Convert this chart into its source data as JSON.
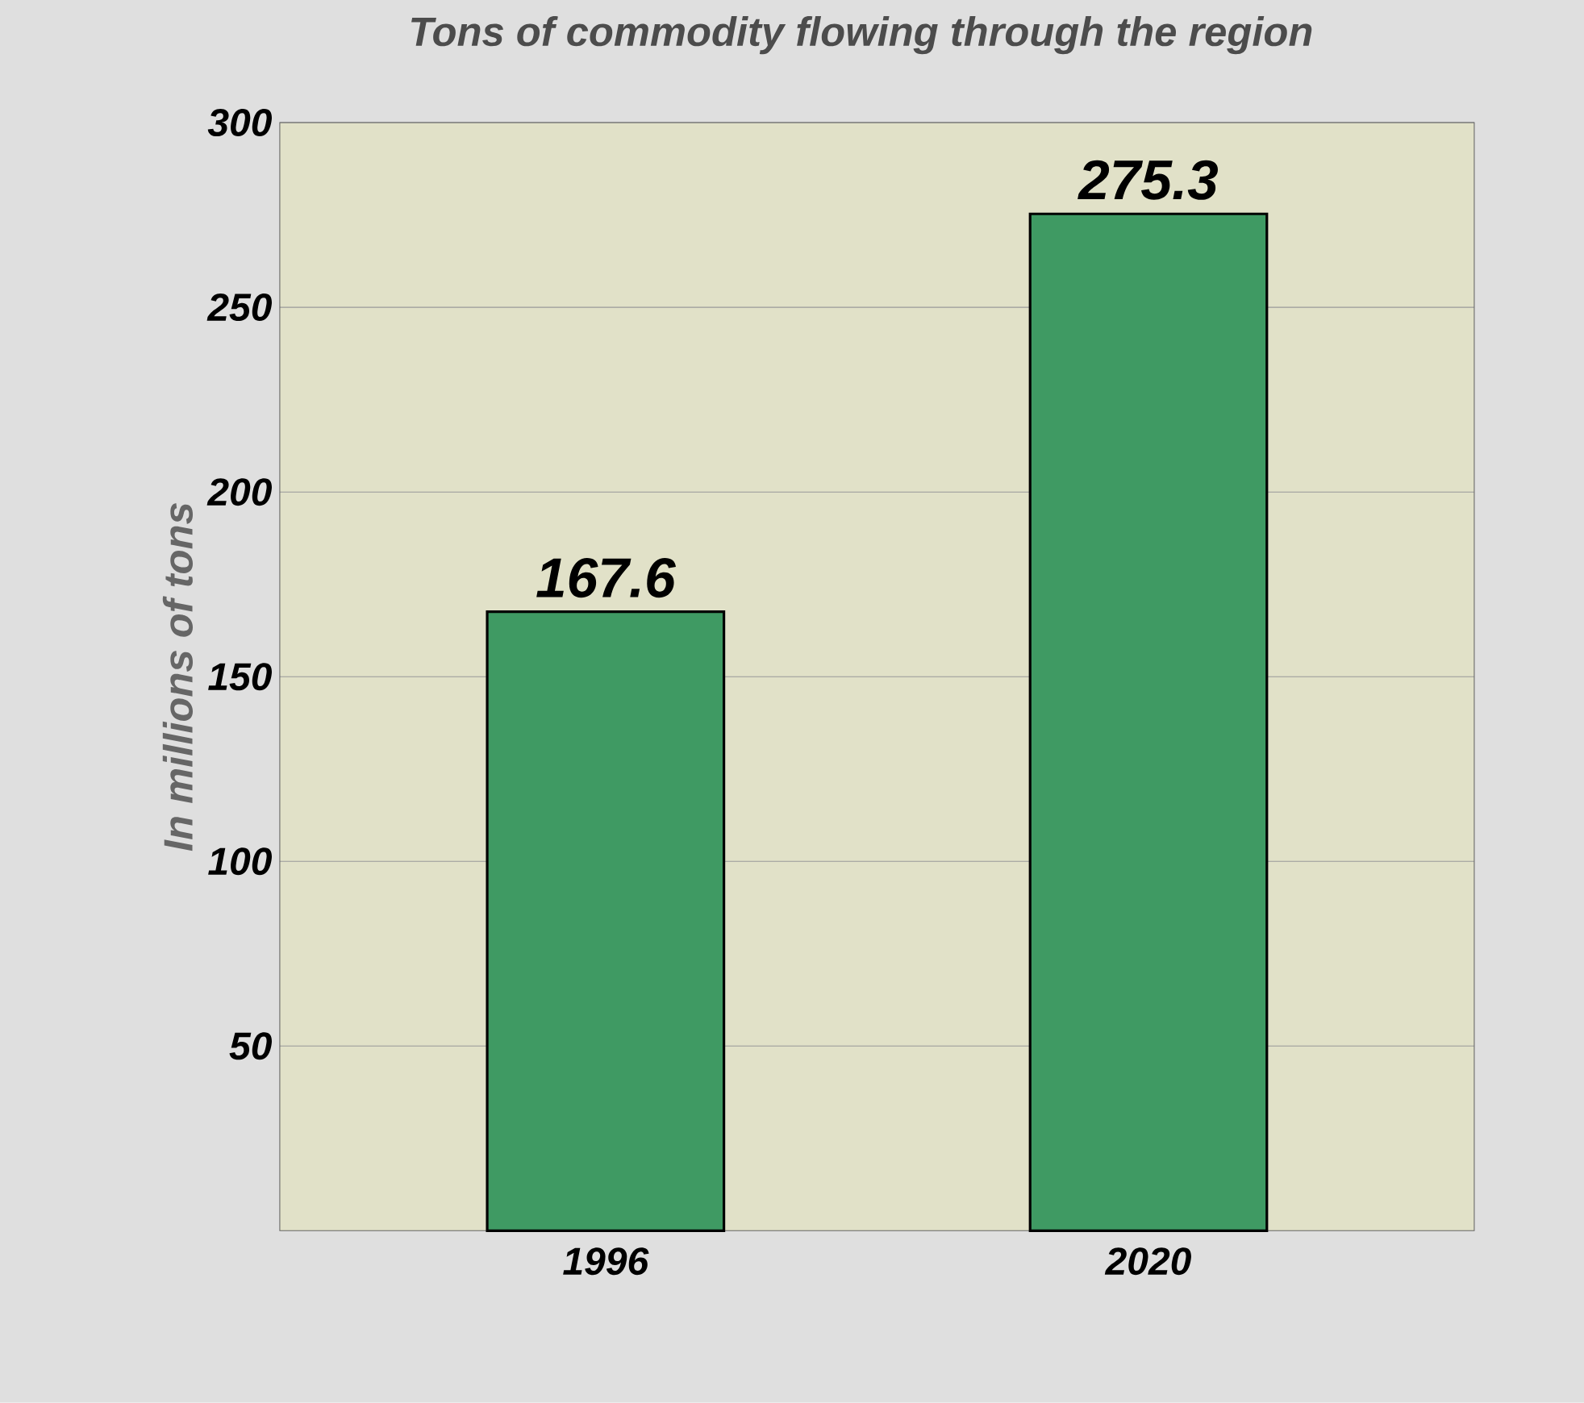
{
  "chart_data": {
    "type": "bar",
    "title": "Tons of commodity flowing through the region",
    "ylabel": "In millions of tons",
    "categories": [
      "1996",
      "2020"
    ],
    "values": [
      167.6,
      275.3
    ],
    "color": "#3f9a63",
    "ylim": [
      0,
      300
    ],
    "yticks": [
      50,
      100,
      150,
      200,
      250,
      300
    ],
    "grid": "y",
    "data_labels": true
  }
}
